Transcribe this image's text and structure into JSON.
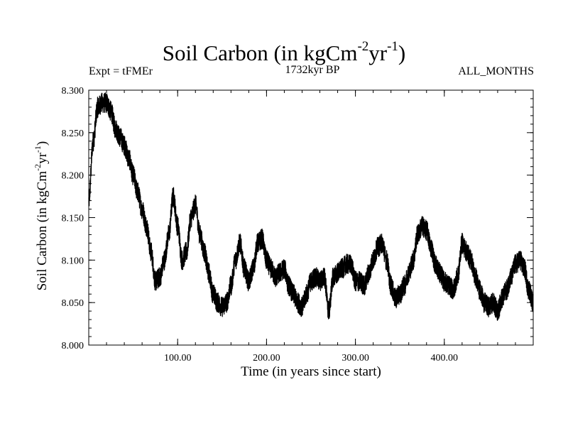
{
  "chart_data": {
    "type": "line",
    "title": {
      "main": "Soil Carbon (in kgCm",
      "sup1": "-2",
      "mid": "yr",
      "sup2": "-1",
      "end": ")"
    },
    "subtitle_left": "Expt = tFMEr",
    "subtitle_center": "1732kyr BP",
    "subtitle_right": "ALL_MONTHS",
    "xlabel": "Time (in years since start)",
    "ylabel": {
      "main": "Soil Carbon (in kgCm",
      "sup1": "-2",
      "mid": "yr",
      "sup2": "-1",
      "end": ")"
    },
    "xlim": [
      0,
      500
    ],
    "ylim": [
      8.0,
      8.3
    ],
    "xticks": [
      100,
      200,
      300,
      400
    ],
    "xtick_labels": [
      "100.00",
      "200.00",
      "300.00",
      "400.00"
    ],
    "yticks": [
      8.0,
      8.05,
      8.1,
      8.15,
      8.2,
      8.25,
      8.3
    ],
    "ytick_labels": [
      "8.000",
      "8.050",
      "8.100",
      "8.150",
      "8.200",
      "8.250",
      "8.300"
    ],
    "line_color": "#000000",
    "series": [
      {
        "name": "Soil Carbon",
        "x": [
          0,
          5,
          10,
          15,
          20,
          25,
          30,
          35,
          40,
          45,
          50,
          55,
          60,
          65,
          70,
          75,
          80,
          85,
          90,
          95,
          100,
          105,
          110,
          115,
          120,
          125,
          130,
          135,
          140,
          145,
          150,
          155,
          160,
          165,
          170,
          175,
          180,
          185,
          190,
          195,
          200,
          205,
          210,
          215,
          220,
          225,
          230,
          235,
          240,
          245,
          250,
          255,
          260,
          265,
          270,
          275,
          280,
          285,
          290,
          295,
          300,
          305,
          310,
          315,
          320,
          325,
          330,
          335,
          340,
          345,
          350,
          355,
          360,
          365,
          370,
          375,
          380,
          385,
          390,
          395,
          400,
          405,
          410,
          415,
          420,
          425,
          430,
          435,
          440,
          445,
          450,
          455,
          460,
          465,
          470,
          475,
          480,
          485,
          490,
          495,
          500
        ],
        "values": [
          8.17,
          8.24,
          8.28,
          8.285,
          8.285,
          8.275,
          8.255,
          8.245,
          8.235,
          8.22,
          8.2,
          8.18,
          8.16,
          8.14,
          8.11,
          8.075,
          8.08,
          8.1,
          8.13,
          8.175,
          8.14,
          8.1,
          8.11,
          8.15,
          8.165,
          8.13,
          8.11,
          8.085,
          8.06,
          8.05,
          8.045,
          8.05,
          8.07,
          8.1,
          8.12,
          8.09,
          8.075,
          8.09,
          8.12,
          8.125,
          8.1,
          8.09,
          8.08,
          8.085,
          8.09,
          8.07,
          8.06,
          8.05,
          8.045,
          8.06,
          8.075,
          8.08,
          8.075,
          8.08,
          8.04,
          8.08,
          8.085,
          8.09,
          8.095,
          8.095,
          8.075,
          8.075,
          8.07,
          8.085,
          8.1,
          8.115,
          8.12,
          8.1,
          8.07,
          8.055,
          8.06,
          8.07,
          8.085,
          8.1,
          8.13,
          8.14,
          8.135,
          8.115,
          8.095,
          8.085,
          8.075,
          8.07,
          8.065,
          8.08,
          8.12,
          8.11,
          8.1,
          8.08,
          8.065,
          8.05,
          8.045,
          8.05,
          8.04,
          8.055,
          8.065,
          8.08,
          8.095,
          8.1,
          8.09,
          8.065,
          8.05
        ]
      }
    ]
  }
}
